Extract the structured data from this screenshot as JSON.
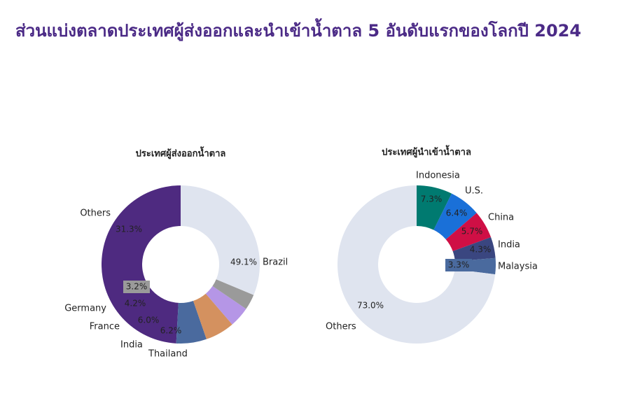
{
  "title": "ส่วนแบ่งตลาดประเทศผู้ส่งออกและนำเข้าน้ำตาล 5 อันดับแรกของโลกปี 2024",
  "chart_data": [
    {
      "type": "pie",
      "title": "ประเทศผู้ส่งออกน้ำตาล",
      "donut": true,
      "slices": [
        {
          "label": "Brazil",
          "value": 49.1,
          "value_label": "49.1%",
          "color": "#4e2a80"
        },
        {
          "label": "Thailand",
          "value": 6.2,
          "value_label": "6.2%",
          "color": "#4a6a9e"
        },
        {
          "label": "India",
          "value": 6.0,
          "value_label": "6.0%",
          "color": "#d4915f"
        },
        {
          "label": "France",
          "value": 4.2,
          "value_label": "4.2%",
          "color": "#b596e6"
        },
        {
          "label": "Germany",
          "value": 3.2,
          "value_label": "3.2%",
          "color": "#9a9a9a"
        },
        {
          "label": "Others",
          "value": 31.3,
          "value_label": "31.3%",
          "color": "#dfe4ef"
        }
      ]
    },
    {
      "type": "pie",
      "title": "ประเทศผู้นำเข้าน้ำตาล",
      "donut": true,
      "slices": [
        {
          "label": "Indonesia",
          "value": 7.3,
          "value_label": "7.3%",
          "color": "#007a70"
        },
        {
          "label": "U.S.",
          "value": 6.4,
          "value_label": "6.4%",
          "color": "#1a70d8"
        },
        {
          "label": "China",
          "value": 5.7,
          "value_label": "5.7%",
          "color": "#cf0f45"
        },
        {
          "label": "India",
          "value": 4.3,
          "value_label": "4.3%",
          "color": "#3a4680"
        },
        {
          "label": "Malaysia",
          "value": 3.3,
          "value_label": "3.3%",
          "color": "#4a6a9e"
        },
        {
          "label": "Others",
          "value": 73.0,
          "value_label": "73.0%",
          "color": "#dfe4ef"
        }
      ]
    }
  ]
}
